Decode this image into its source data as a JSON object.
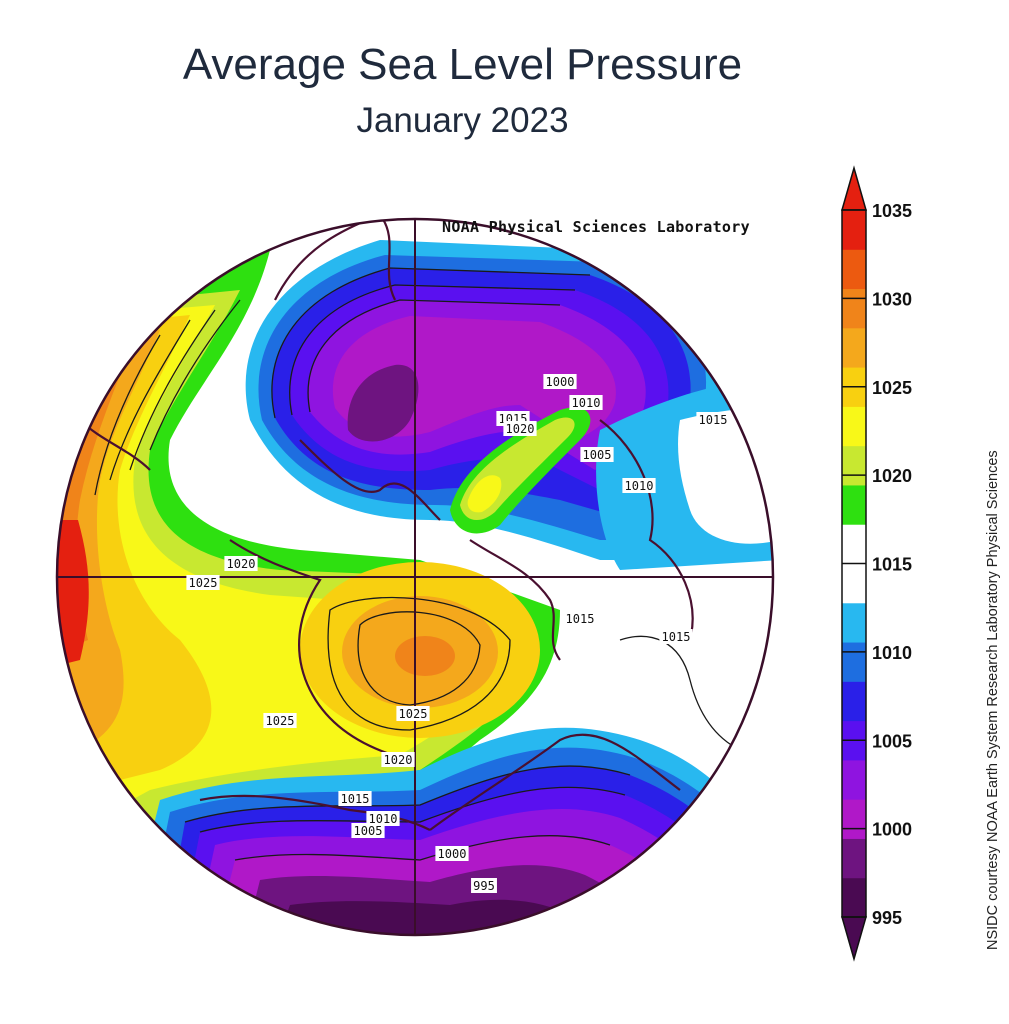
{
  "title": "Average Sea Level Pressure",
  "subtitle": "January 2023",
  "source_credit": "NOAA Physical Sciences Laboratory",
  "side_credit": "NSIDC courtesy NOAA Earth System Research Laboratory Physical Sciences",
  "colorbar": {
    "ticks": [
      "995",
      "1000",
      "1005",
      "1010",
      "1015",
      "1020",
      "1025",
      "1030",
      "1035"
    ],
    "colors": [
      "#4a0a52",
      "#6e1480",
      "#b018c8",
      "#8f14e0",
      "#5a10f0",
      "#2a20e8",
      "#1e6ee0",
      "#28b8f0",
      "#ffffff",
      "#ffffff",
      "#2ee010",
      "#c8e830",
      "#f8f818",
      "#f8d010",
      "#f4a81c",
      "#f0841a",
      "#ec5a10",
      "#e42010"
    ]
  },
  "contour_labels": [
    {
      "text": "1000"
    },
    {
      "text": "1010"
    },
    {
      "text": "1015"
    },
    {
      "text": "1020"
    },
    {
      "text": "1005"
    },
    {
      "text": "1010"
    },
    {
      "text": "1015"
    },
    {
      "text": "1020"
    },
    {
      "text": "1025"
    },
    {
      "text": "1015"
    },
    {
      "text": "1015"
    },
    {
      "text": "1025"
    },
    {
      "text": "1025"
    },
    {
      "text": "1020"
    },
    {
      "text": "1015"
    },
    {
      "text": "1010"
    },
    {
      "text": "1005"
    },
    {
      "text": "1000"
    },
    {
      "text": "995"
    }
  ]
}
